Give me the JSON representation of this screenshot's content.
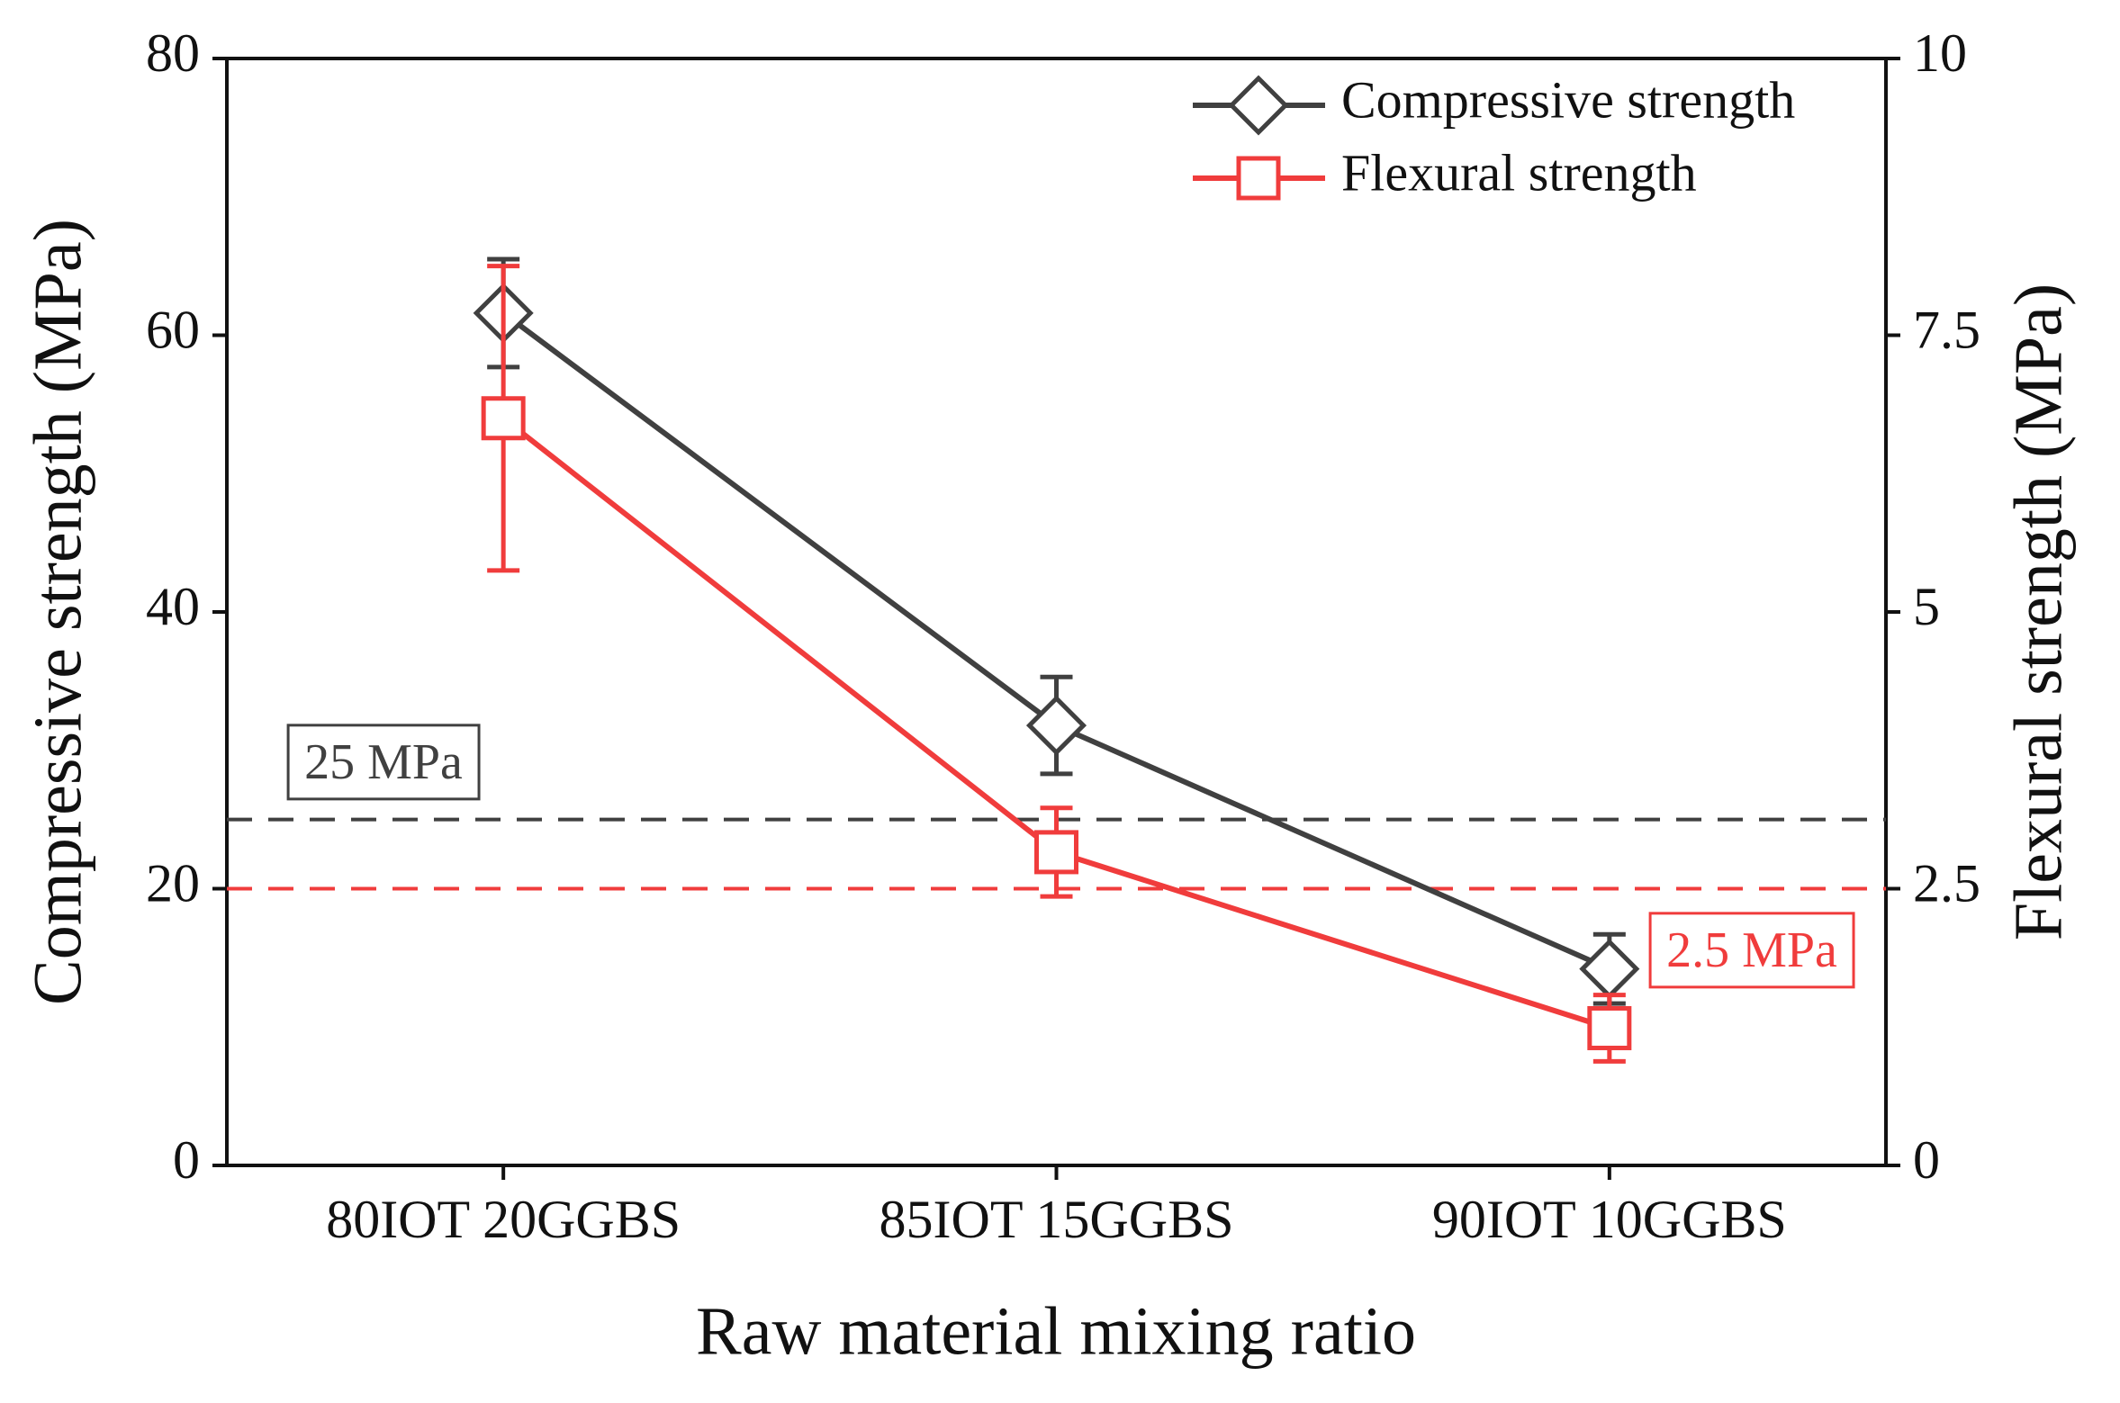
{
  "chart_data": {
    "type": "line",
    "x_label": "Raw material mixing ratio",
    "y_label": "Compressive strength (MPa)",
    "y2_label": "Flexural strength (MPa)",
    "categories": [
      "80IOT 20GGBS",
      "85IOT 15GGBS",
      "90IOT 10GGBS"
    ],
    "series": [
      {
        "name": "Compressive strength",
        "color": "#404040",
        "marker": "diamond",
        "axis": "y",
        "values": [
          61.6,
          31.8,
          14.2
        ],
        "errors": [
          3.9,
          3.5,
          2.5
        ]
      },
      {
        "name": "Flexural strength",
        "color": "#f03c3c",
        "marker": "square",
        "axis": "y2",
        "values": [
          6.75,
          2.83,
          1.24
        ],
        "errors": [
          1.375,
          0.4,
          0.3
        ]
      }
    ],
    "ylim": [
      0,
      80
    ],
    "yticks": [
      0,
      20,
      40,
      60,
      80
    ],
    "y2lim": [
      0,
      10
    ],
    "y2ticks": [
      0,
      2.5,
      5,
      7.5,
      10
    ],
    "reference_lines": [
      {
        "value": 25,
        "axis": "y",
        "label": "25 MPa",
        "color": "#404040"
      },
      {
        "value": 2.5,
        "axis": "y2",
        "label": "2.5 MPa",
        "color": "#f03c3c"
      }
    ],
    "legend": "upper right",
    "grid": false
  }
}
